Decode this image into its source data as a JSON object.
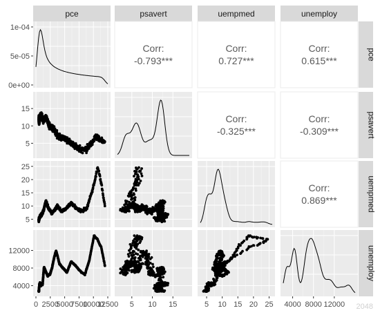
{
  "chart_data": {
    "type": "scatter-matrix",
    "title": "",
    "variables": [
      "pce",
      "psavert",
      "uempmed",
      "unemploy"
    ],
    "correlations": [
      {
        "row": "pce",
        "col": "psavert",
        "label": "Corr:",
        "value": "-0.793***"
      },
      {
        "row": "pce",
        "col": "uempmed",
        "label": "Corr:",
        "value": "0.727***"
      },
      {
        "row": "pce",
        "col": "unemploy",
        "label": "Corr:",
        "value": "0.615***"
      },
      {
        "row": "psavert",
        "col": "uempmed",
        "label": "Corr:",
        "value": "-0.325***"
      },
      {
        "row": "psavert",
        "col": "unemploy",
        "label": "Corr:",
        "value": "-0.309***"
      },
      {
        "row": "uempmed",
        "col": "unemploy",
        "label": "Corr:",
        "value": "0.869***"
      }
    ],
    "axes": {
      "pce": {
        "range": [
          0,
          12500
        ],
        "ticks": [
          "0",
          "2500",
          "5000",
          "7500",
          "10000",
          "12500"
        ]
      },
      "psavert": {
        "range": [
          1.5,
          19
        ],
        "ticks": [
          "5",
          "10",
          "15"
        ]
      },
      "uempmed": {
        "range": [
          3,
          26
        ],
        "ticks": [
          "5",
          "10",
          "15",
          "20",
          "25"
        ]
      },
      "unemploy": {
        "range": [
          2200,
          16000
        ],
        "ticks": [
          "4000",
          "8000",
          "12000"
        ]
      }
    },
    "density_y_ticks": [
      "0e+00",
      "5e-05",
      "1e-04"
    ],
    "grid": true
  },
  "watermark": "2048"
}
